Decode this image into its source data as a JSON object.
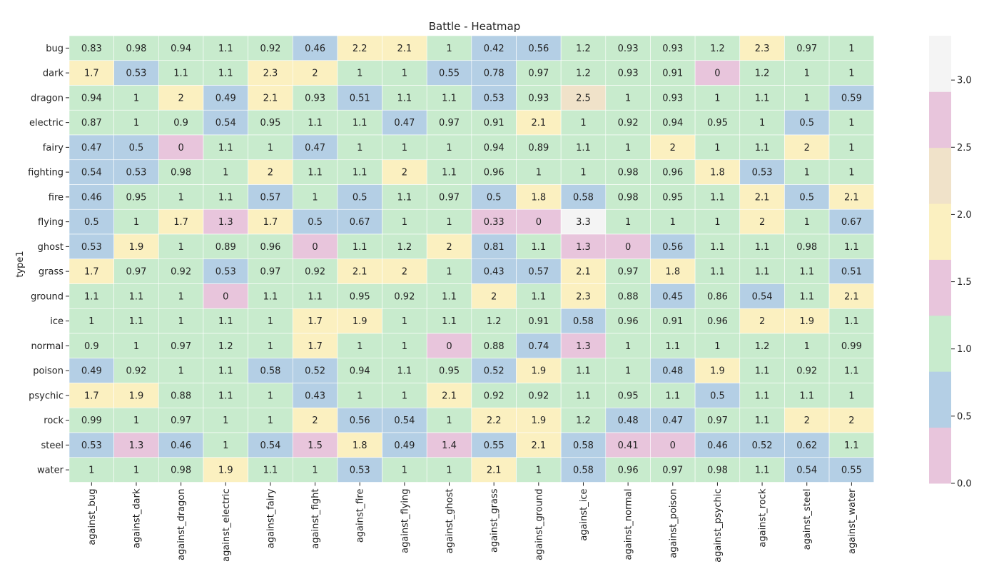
{
  "chart_data": {
    "type": "heatmap",
    "title": "Battle - Heatmap",
    "ylabel": "type1",
    "xlabel": "",
    "rows": [
      "bug",
      "dark",
      "dragon",
      "electric",
      "fairy",
      "fighting",
      "fire",
      "flying",
      "ghost",
      "grass",
      "ground",
      "ice",
      "normal",
      "poison",
      "psychic",
      "rock",
      "steel",
      "water"
    ],
    "columns": [
      "against_bug",
      "against_dark",
      "against_dragon",
      "against_electric",
      "against_fairy",
      "against_fight",
      "against_fire",
      "against_flying",
      "against_ghost",
      "against_grass",
      "against_ground",
      "against_ice",
      "against_normal",
      "against_poison",
      "against_psychic",
      "against_rock",
      "against_steel",
      "against_water"
    ],
    "values": [
      [
        0.83,
        0.98,
        0.94,
        1.1,
        0.92,
        0.46,
        2.2,
        2.1,
        1,
        0.42,
        0.56,
        1.2,
        0.93,
        0.93,
        1.2,
        2.3,
        0.97,
        1
      ],
      [
        1.7,
        0.53,
        1.1,
        1.1,
        2.3,
        2,
        1,
        1,
        0.55,
        0.78,
        0.97,
        1.2,
        0.93,
        0.91,
        0,
        1.2,
        1,
        1
      ],
      [
        0.94,
        1,
        2,
        0.49,
        2.1,
        0.93,
        0.51,
        1.1,
        1.1,
        0.53,
        0.93,
        2.5,
        1,
        0.93,
        1,
        1.1,
        1,
        0.59
      ],
      [
        0.87,
        1,
        0.9,
        0.54,
        0.95,
        1.1,
        1.1,
        0.47,
        0.97,
        0.91,
        2.1,
        1,
        0.92,
        0.94,
        0.95,
        1,
        0.5,
        1
      ],
      [
        0.47,
        0.5,
        0,
        1.1,
        1,
        0.47,
        1,
        1,
        1,
        0.94,
        0.89,
        1.1,
        1,
        2,
        1,
        1.1,
        2,
        1
      ],
      [
        0.54,
        0.53,
        0.98,
        1,
        2,
        1.1,
        1.1,
        2,
        1.1,
        0.96,
        1,
        1,
        0.98,
        0.96,
        1.8,
        0.53,
        1,
        1
      ],
      [
        0.46,
        0.95,
        1,
        1.1,
        0.57,
        1,
        0.5,
        1.1,
        0.97,
        0.5,
        1.8,
        0.58,
        0.98,
        0.95,
        1.1,
        2.1,
        0.5,
        2.1
      ],
      [
        0.5,
        1,
        1.7,
        1.3,
        1.7,
        0.5,
        0.67,
        1,
        1,
        0.33,
        0,
        3.3,
        1,
        1,
        1,
        2,
        1,
        0.67
      ],
      [
        0.53,
        1.9,
        1,
        0.89,
        0.96,
        0,
        1.1,
        1.2,
        2,
        0.81,
        1.1,
        1.3,
        0,
        0.56,
        1.1,
        1.1,
        0.98,
        1.1
      ],
      [
        1.7,
        0.97,
        0.92,
        0.53,
        0.97,
        0.92,
        2.1,
        2,
        1,
        0.43,
        0.57,
        2.1,
        0.97,
        1.8,
        1.1,
        1.1,
        1.1,
        0.51
      ],
      [
        1.1,
        1.1,
        1,
        0,
        1.1,
        1.1,
        0.95,
        0.92,
        1.1,
        2,
        1.1,
        2.3,
        0.88,
        0.45,
        0.86,
        0.54,
        1.1,
        2.1
      ],
      [
        1,
        1.1,
        1,
        1.1,
        1,
        1.7,
        1.9,
        1,
        1.1,
        1.2,
        0.91,
        0.58,
        0.96,
        0.91,
        0.96,
        2,
        1.9,
        1.1
      ],
      [
        0.9,
        1,
        0.97,
        1.2,
        1,
        1.7,
        1,
        1,
        0,
        0.88,
        0.74,
        1.3,
        1,
        1.1,
        1,
        1.2,
        1,
        0.99
      ],
      [
        0.49,
        0.92,
        1,
        1.1,
        0.58,
        0.52,
        0.94,
        1.1,
        0.95,
        0.52,
        1.9,
        1.1,
        1,
        0.48,
        1.9,
        1.1,
        0.92,
        1.1
      ],
      [
        1.7,
        1.9,
        0.88,
        1.1,
        1,
        0.43,
        1,
        1,
        2.1,
        0.92,
        0.92,
        1.1,
        0.95,
        1.1,
        0.5,
        1.1,
        1.1,
        1
      ],
      [
        0.99,
        1,
        0.97,
        1,
        1,
        2,
        0.56,
        0.54,
        1,
        2.2,
        1.9,
        1.2,
        0.48,
        0.47,
        0.97,
        1.1,
        2,
        2
      ],
      [
        0.53,
        1.3,
        0.46,
        1,
        0.54,
        1.5,
        1.8,
        0.49,
        1.4,
        0.55,
        2.1,
        0.58,
        0.41,
        0,
        0.46,
        0.52,
        0.62,
        1.1
      ],
      [
        1,
        1,
        0.98,
        1.9,
        1.1,
        1,
        0.53,
        1,
        1,
        2.1,
        1,
        0.58,
        0.96,
        0.97,
        0.98,
        1.1,
        0.54,
        0.55
      ]
    ],
    "colormap": {
      "vmin": 0,
      "vmax": 3.33,
      "bands": [
        {
          "from": 0.0,
          "to": 0.42,
          "color": "#e8c5dc"
        },
        {
          "from": 0.42,
          "to": 0.83,
          "color": "#b4cfe5"
        },
        {
          "from": 0.83,
          "to": 1.25,
          "color": "#c8ebcd"
        },
        {
          "from": 1.25,
          "to": 1.67,
          "color": "#e8c5dc"
        },
        {
          "from": 1.67,
          "to": 2.08,
          "color": "#fbf0c0"
        },
        {
          "from": 2.08,
          "to": 2.5,
          "color": "#fbf0c0"
        },
        {
          "from": 2.5,
          "to": 2.92,
          "color": "#f0e2c9"
        },
        {
          "from": 2.92,
          "to": 3.33,
          "color": "#f4f4f4"
        }
      ]
    },
    "colorbar": {
      "ticks": [
        0.0,
        0.5,
        1.0,
        1.5,
        2.0,
        2.5,
        3.0
      ],
      "tick_labels": [
        "0.0",
        "0.5",
        "1.0",
        "1.5",
        "2.0",
        "2.5",
        "3.0"
      ],
      "band_colors": [
        "#e8c5dc",
        "#b4cfe5",
        "#c8ebcd",
        "#e8c5dc",
        "#fbf0c0",
        "#f0e2c9",
        "#e8c5dc",
        "#f4f4f4"
      ]
    },
    "grid_color": "#ffffff",
    "text_color": "#222222"
  }
}
